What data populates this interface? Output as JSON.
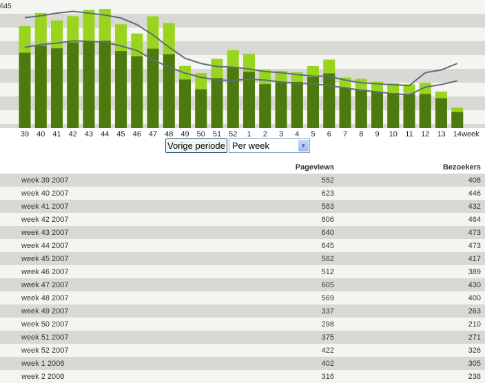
{
  "chart_data": {
    "type": "bar",
    "ymax_label": "645",
    "ylim": [
      0,
      645
    ],
    "grid": true,
    "xunit": "week",
    "categories": [
      "39",
      "40",
      "41",
      "42",
      "43",
      "44",
      "45",
      "46",
      "47",
      "48",
      "49",
      "50",
      "51",
      "52",
      "1",
      "2",
      "3",
      "4",
      "5",
      "6",
      "7",
      "8",
      "9",
      "10",
      "11",
      "12",
      "13",
      "14"
    ],
    "series": [
      {
        "name": "Pageviews",
        "color": "#99d41e",
        "values": [
          552,
          623,
          583,
          606,
          640,
          645,
          562,
          512,
          605,
          569,
          337,
          298,
          375,
          422,
          402,
          316,
          310,
          302,
          336,
          371,
          274,
          267,
          251,
          242,
          237,
          246,
          198,
          111
        ]
      },
      {
        "name": "Bezoekers",
        "color": "#4d7a0e",
        "values": [
          408,
          446,
          432,
          464,
          473,
          473,
          417,
          389,
          430,
          400,
          263,
          210,
          271,
          326,
          305,
          238,
          248,
          250,
          276,
          296,
          217,
          208,
          196,
          190,
          186,
          185,
          162,
          87
        ]
      }
    ],
    "trend_lines": [
      {
        "color": "#5d6e78",
        "values": [
          598,
          608,
          622,
          632,
          622,
          612,
          596,
          560,
          505,
          438,
          378,
          350,
          333,
          330,
          320,
          306,
          300,
          290,
          282,
          280,
          260,
          245,
          240,
          235,
          230,
          300,
          315,
          350
        ]
      },
      {
        "color": "#5d6e78",
        "values": [
          437,
          452,
          460,
          472,
          470,
          465,
          445,
          420,
          370,
          330,
          298,
          275,
          260,
          258,
          265,
          260,
          250,
          242,
          240,
          230,
          218,
          205,
          196,
          186,
          180,
          222,
          236,
          256
        ]
      }
    ]
  },
  "controls": {
    "prev_label": "Vorige periode",
    "period_value": "Per week"
  },
  "table": {
    "headers": {
      "pageviews": "Pageviews",
      "bezoekers": "Bezoekers"
    },
    "rows": [
      {
        "label": "week 39 2007",
        "pageviews": "552",
        "bezoekers": "408"
      },
      {
        "label": "week 40 2007",
        "pageviews": "623",
        "bezoekers": "446"
      },
      {
        "label": "week 41 2007",
        "pageviews": "583",
        "bezoekers": "432"
      },
      {
        "label": "week 42 2007",
        "pageviews": "606",
        "bezoekers": "464"
      },
      {
        "label": "week 43 2007",
        "pageviews": "640",
        "bezoekers": "473"
      },
      {
        "label": "week 44 2007",
        "pageviews": "645",
        "bezoekers": "473"
      },
      {
        "label": "week 45 2007",
        "pageviews": "562",
        "bezoekers": "417"
      },
      {
        "label": "week 46 2007",
        "pageviews": "512",
        "bezoekers": "389"
      },
      {
        "label": "week 47 2007",
        "pageviews": "605",
        "bezoekers": "430"
      },
      {
        "label": "week 48 2007",
        "pageviews": "569",
        "bezoekers": "400"
      },
      {
        "label": "week 49 2007",
        "pageviews": "337",
        "bezoekers": "263"
      },
      {
        "label": "week 50 2007",
        "pageviews": "298",
        "bezoekers": "210"
      },
      {
        "label": "week 51 2007",
        "pageviews": "375",
        "bezoekers": "271"
      },
      {
        "label": "week 52 2007",
        "pageviews": "422",
        "bezoekers": "326"
      },
      {
        "label": "week 1 2008",
        "pageviews": "402",
        "bezoekers": "305"
      },
      {
        "label": "week 2 2008",
        "pageviews": "316",
        "bezoekers": "238"
      }
    ]
  }
}
